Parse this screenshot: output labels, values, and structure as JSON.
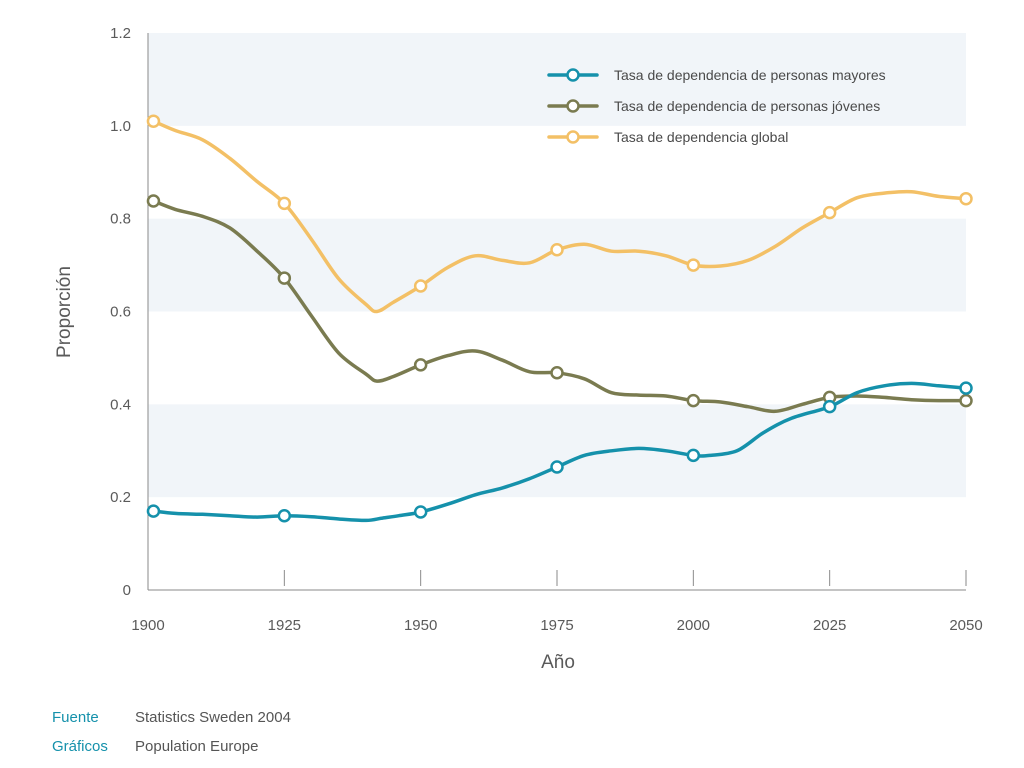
{
  "chart_data": {
    "type": "line",
    "title": "",
    "xlabel": "Año",
    "ylabel": "Proporción",
    "xlim": [
      1900,
      2050
    ],
    "ylim": [
      0,
      1.2
    ],
    "x_ticks": [
      1900,
      1925,
      1950,
      1975,
      2000,
      2025,
      2050
    ],
    "y_ticks": [
      0,
      0.2,
      0.4,
      0.6,
      0.8,
      1.0,
      1.2
    ],
    "x_tick_labels": [
      "1900",
      "1925",
      "1950",
      "1975",
      "2000",
      "2025",
      "2050"
    ],
    "y_tick_labels": [
      "0",
      "0.2",
      "0.4",
      "0.6",
      "0.8",
      "1.0",
      "1.2"
    ],
    "grid": "alternating horizontal bands",
    "legend_position": "top-right",
    "marker_x": [
      1901,
      1925,
      1950,
      1975,
      2000,
      2025,
      2050
    ],
    "series": [
      {
        "name": "Tasa de dependencia de personas mayores",
        "color": "#1591ab",
        "x": [
          1901,
          1905,
          1910,
          1915,
          1920,
          1925,
          1930,
          1935,
          1940,
          1943,
          1946,
          1950,
          1955,
          1960,
          1965,
          1970,
          1975,
          1980,
          1985,
          1990,
          1995,
          2000,
          2003,
          2008,
          2013,
          2018,
          2025,
          2030,
          2035,
          2040,
          2045,
          2050
        ],
        "y": [
          0.17,
          0.165,
          0.163,
          0.16,
          0.157,
          0.16,
          0.158,
          0.153,
          0.15,
          0.155,
          0.16,
          0.168,
          0.185,
          0.205,
          0.22,
          0.24,
          0.265,
          0.29,
          0.3,
          0.305,
          0.3,
          0.29,
          0.29,
          0.3,
          0.34,
          0.37,
          0.395,
          0.425,
          0.44,
          0.445,
          0.44,
          0.435
        ],
        "markers": [
          0.17,
          0.16,
          0.168,
          0.265,
          0.29,
          0.395,
          0.435
        ]
      },
      {
        "name": "Tasa de dependencia de personas jóvenes",
        "color": "#7a7b50",
        "x": [
          1901,
          1905,
          1910,
          1915,
          1920,
          1925,
          1930,
          1935,
          1940,
          1942,
          1945,
          1950,
          1955,
          1960,
          1965,
          1970,
          1975,
          1980,
          1985,
          1990,
          1995,
          2000,
          2005,
          2010,
          2015,
          2020,
          2025,
          2030,
          2035,
          2040,
          2045,
          2050
        ],
        "y": [
          0.838,
          0.82,
          0.805,
          0.78,
          0.73,
          0.672,
          0.59,
          0.51,
          0.465,
          0.45,
          0.46,
          0.485,
          0.505,
          0.515,
          0.495,
          0.47,
          0.468,
          0.455,
          0.425,
          0.42,
          0.418,
          0.408,
          0.405,
          0.395,
          0.385,
          0.4,
          0.415,
          0.418,
          0.415,
          0.41,
          0.408,
          0.408
        ],
        "markers": [
          0.838,
          0.672,
          0.485,
          0.468,
          0.408,
          0.415,
          0.408
        ]
      },
      {
        "name": "Tasa de dependencia global",
        "color": "#f3c066",
        "x": [
          1901,
          1905,
          1910,
          1915,
          1920,
          1925,
          1930,
          1935,
          1940,
          1942,
          1945,
          1950,
          1955,
          1960,
          1965,
          1970,
          1975,
          1980,
          1985,
          1990,
          1995,
          2000,
          2005,
          2010,
          2015,
          2020,
          2025,
          2030,
          2035,
          2040,
          2045,
          2050
        ],
        "y": [
          1.01,
          0.99,
          0.97,
          0.93,
          0.88,
          0.833,
          0.755,
          0.67,
          0.615,
          0.6,
          0.62,
          0.655,
          0.695,
          0.72,
          0.71,
          0.705,
          0.733,
          0.745,
          0.73,
          0.73,
          0.72,
          0.7,
          0.698,
          0.71,
          0.74,
          0.78,
          0.813,
          0.845,
          0.855,
          0.858,
          0.848,
          0.843
        ],
        "markers": [
          1.01,
          0.833,
          0.655,
          0.733,
          0.7,
          0.813,
          0.843
        ]
      }
    ]
  },
  "footer": {
    "source_key": "Fuente",
    "source_value": "Statistics Sweden 2004",
    "graphics_key": "Gráficos",
    "graphics_value": "Population Europe"
  }
}
